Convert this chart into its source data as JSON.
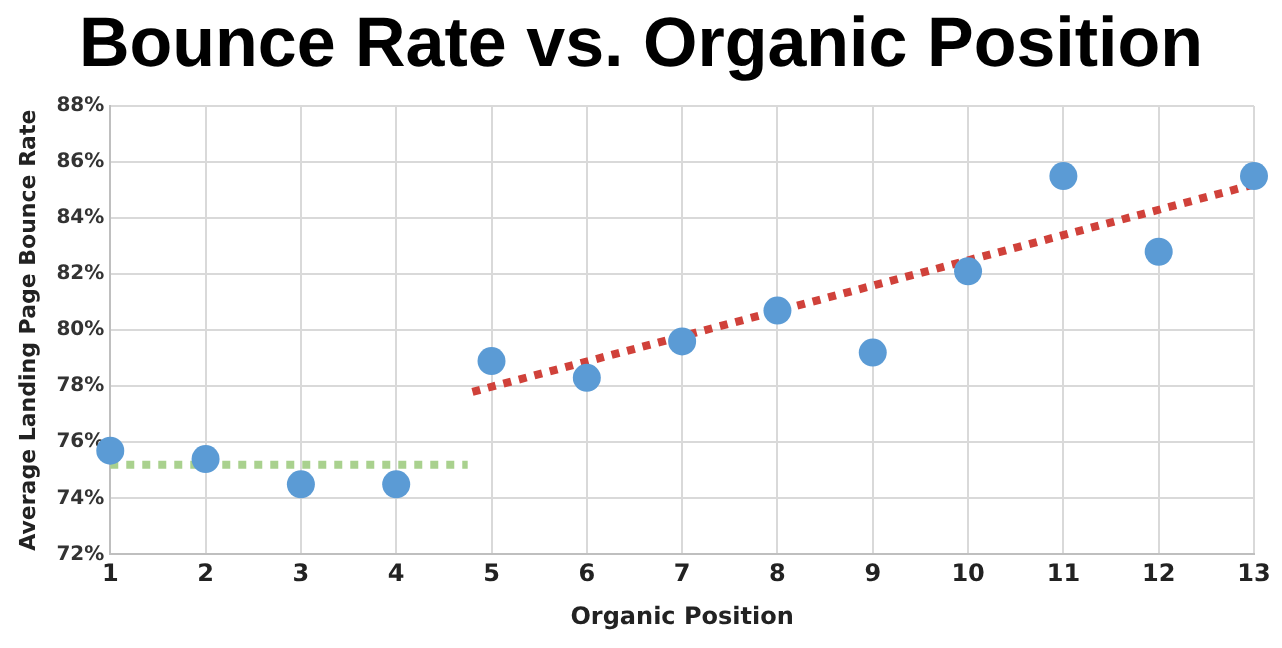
{
  "chart_data": {
    "type": "scatter",
    "title": "Bounce Rate vs. Organic Position",
    "xlabel": "Organic Position",
    "ylabel": "Average Landing Page Bounce Rate",
    "x": [
      1,
      2,
      3,
      4,
      5,
      6,
      7,
      8,
      9,
      10,
      11,
      12,
      13
    ],
    "series": [
      {
        "color": "#5b9bd5",
        "values": [
          75.7,
          75.4,
          74.5,
          74.5,
          78.9,
          78.3,
          79.6,
          80.7,
          79.2,
          82.1,
          85.5,
          82.8,
          85.5
        ],
        "marker": "circle"
      },
      {
        "type": "line",
        "color": "#a9d18e",
        "x": [
          1,
          4.75
        ],
        "values": [
          75.2,
          75.2
        ],
        "line_style": "dotted",
        "marker": "none"
      },
      {
        "type": "line",
        "color": "#d0413a",
        "x": [
          4.8,
          13
        ],
        "values": [
          77.8,
          85.2
        ],
        "line_style": "dotted",
        "marker": "none"
      }
    ],
    "xlim": [
      1,
      13
    ],
    "xticks": [
      1,
      2,
      3,
      4,
      5,
      6,
      7,
      8,
      9,
      10,
      11,
      12,
      13
    ],
    "ylim": [
      72,
      88
    ],
    "yticks": [
      {
        "value": 72,
        "label": "72%"
      },
      {
        "value": 74,
        "label": "74%"
      },
      {
        "value": 76,
        "label": "76%"
      },
      {
        "value": 78,
        "label": "78%"
      },
      {
        "value": 80,
        "label": "80%"
      },
      {
        "value": 82,
        "label": "82%"
      },
      {
        "value": 84,
        "label": "84%"
      },
      {
        "value": 86,
        "label": "86%"
      },
      {
        "value": 88,
        "label": "88%"
      }
    ],
    "grid": true,
    "legend": false
  }
}
